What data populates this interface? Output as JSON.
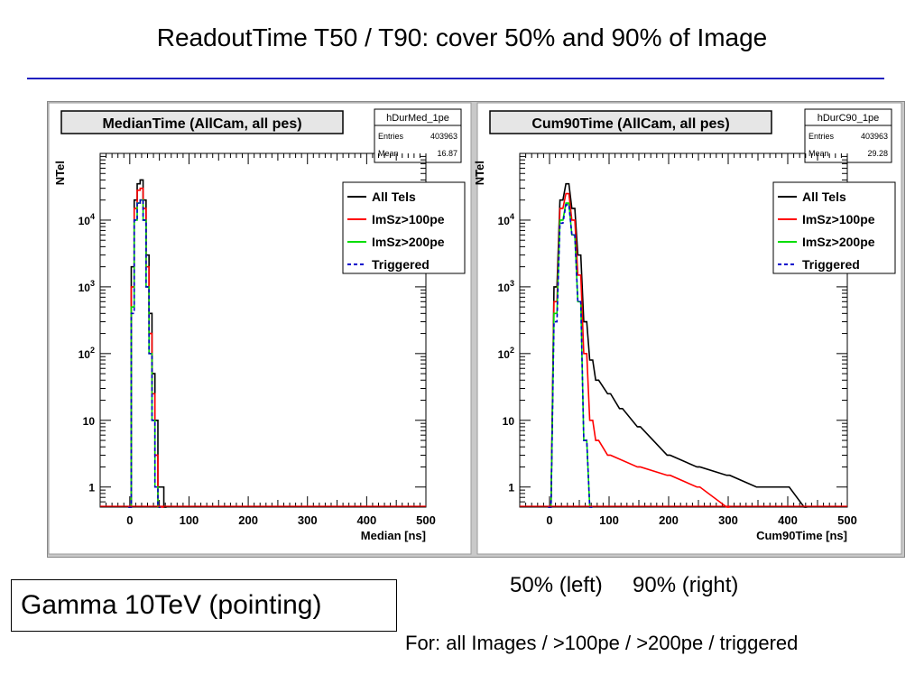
{
  "slide": {
    "title": "ReadoutTime T50 / T90: cover 50% and  90% of Image",
    "gamma_label": "Gamma 10TeV (pointing)",
    "caption_lr": "50% (left)     90% (right)",
    "caption_for": "For: all Images / >100pe / >200pe / triggered"
  },
  "colors": {
    "all_tels": "#000000",
    "imsz100": "#ff0000",
    "imsz200": "#00dd00",
    "triggered": "#0000cc",
    "title_rule": "#2020c0"
  },
  "chart_data": [
    {
      "type": "line",
      "title": "MedianTime (AllCam, all pes)",
      "stats": {
        "name": "hDurMed_1pe",
        "entries_label": "Entries",
        "entries": "403963",
        "mean_label": "Mean",
        "mean": "16.87"
      },
      "xlabel": "Median [ns]",
      "ylabel": "NTel",
      "xlim": [
        -50,
        500
      ],
      "ylim": [
        0.5,
        100000
      ],
      "ylog": true,
      "x_ticks": [
        "0",
        "100",
        "200",
        "300",
        "400",
        "500"
      ],
      "y_ticks": [
        {
          "base": "1",
          "exp": ""
        },
        {
          "base": "10",
          "exp": ""
        },
        {
          "base": "10",
          "exp": "2"
        },
        {
          "base": "10",
          "exp": "3"
        },
        {
          "base": "10",
          "exp": "4"
        }
      ],
      "legend": [
        "All Tels",
        "ImSz>100pe",
        "ImSz>200pe",
        "Triggered"
      ],
      "legend_position": "top-right",
      "series": [
        {
          "name": "All Tels",
          "x": [
            0,
            5,
            10,
            15,
            20,
            25,
            30,
            35,
            40,
            45,
            50,
            55,
            60
          ],
          "y": [
            0.5,
            2000,
            20000,
            35000,
            40000,
            20000,
            3000,
            400,
            50,
            10,
            1,
            1,
            0.5
          ]
        },
        {
          "name": "ImSz>100pe",
          "x": [
            0,
            5,
            10,
            15,
            20,
            25,
            30,
            35,
            40,
            45,
            50,
            55
          ],
          "y": [
            0.5,
            1000,
            15000,
            28000,
            30000,
            15000,
            2000,
            200,
            25,
            3,
            0.5,
            0.5
          ]
        },
        {
          "name": "ImSz>200pe",
          "x": [
            0,
            5,
            10,
            15,
            20,
            25,
            30,
            35,
            40,
            45,
            50
          ],
          "y": [
            0.5,
            500,
            10000,
            18000,
            20000,
            10000,
            1000,
            100,
            10,
            1,
            0.5
          ]
        },
        {
          "name": "Triggered",
          "x": [
            0,
            5,
            10,
            15,
            20,
            25,
            30,
            35,
            40,
            45,
            50
          ],
          "y": [
            0.5,
            400,
            10000,
            18000,
            20000,
            10000,
            1000,
            100,
            10,
            1,
            0.5
          ]
        }
      ]
    },
    {
      "type": "line",
      "title": "Cum90Time (AllCam, all pes)",
      "stats": {
        "name": "hDurC90_1pe",
        "entries_label": "Entries",
        "entries": "403963",
        "mean_label": "Mean",
        "mean": "29.28"
      },
      "xlabel": "Cum90Time [ns]",
      "ylabel": "NTel",
      "xlim": [
        -50,
        500
      ],
      "ylim": [
        0.5,
        100000
      ],
      "ylog": true,
      "x_ticks": [
        "0",
        "100",
        "200",
        "300",
        "400",
        "500"
      ],
      "y_ticks": [
        {
          "base": "1",
          "exp": ""
        },
        {
          "base": "10",
          "exp": ""
        },
        {
          "base": "10",
          "exp": "2"
        },
        {
          "base": "10",
          "exp": "3"
        },
        {
          "base": "10",
          "exp": "4"
        }
      ],
      "legend": [
        "All Tels",
        "ImSz>100pe",
        "ImSz>200pe",
        "Triggered"
      ],
      "legend_position": "top-right",
      "series": [
        {
          "name": "All Tels",
          "x": [
            0,
            10,
            20,
            30,
            40,
            50,
            60,
            70,
            80,
            100,
            120,
            150,
            200,
            250,
            300,
            350,
            400,
            430
          ],
          "y": [
            0.5,
            1000,
            20000,
            35000,
            15000,
            3000,
            300,
            80,
            40,
            25,
            15,
            8,
            3,
            2,
            1.5,
            1,
            1,
            0.5
          ]
        },
        {
          "name": "ImSz>100pe",
          "x": [
            0,
            10,
            20,
            30,
            40,
            50,
            60,
            70,
            80,
            100,
            150,
            200,
            250,
            300
          ],
          "y": [
            0.5,
            600,
            15000,
            25000,
            10000,
            1500,
            100,
            10,
            5,
            3,
            2,
            1.5,
            1,
            0.5
          ]
        },
        {
          "name": "ImSz>200pe",
          "x": [
            0,
            10,
            20,
            30,
            40,
            50,
            60,
            70
          ],
          "y": [
            0.5,
            400,
            10000,
            18000,
            6000,
            600,
            5,
            0.5
          ]
        },
        {
          "name": "Triggered",
          "x": [
            0,
            10,
            20,
            30,
            40,
            50,
            60,
            70
          ],
          "y": [
            0.5,
            300,
            9000,
            17000,
            6000,
            600,
            5,
            0.5
          ]
        }
      ]
    }
  ]
}
